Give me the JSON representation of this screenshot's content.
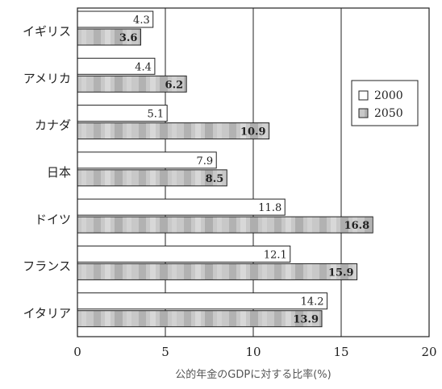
{
  "colors": {
    "series_2000_fill": "#ffffff",
    "series_2050_fill": "#c4c4c4",
    "stroke": "#222222"
  },
  "chart_data": {
    "type": "bar",
    "orientation": "horizontal",
    "categories": [
      "イギリス",
      "アメリカ",
      "カナダ",
      "日本",
      "ドイツ",
      "フランス",
      "イタリア"
    ],
    "series": [
      {
        "name": "2000",
        "values": [
          4.3,
          4.4,
          5.1,
          7.9,
          11.8,
          12.1,
          14.2
        ],
        "value_labels": [
          "4.3",
          "4.4",
          "5.1",
          "7.9",
          "11.8",
          "12.1",
          "14.2"
        ]
      },
      {
        "name": "2050",
        "values": [
          3.6,
          6.2,
          10.9,
          8.5,
          16.8,
          15.9,
          13.9
        ],
        "value_labels": [
          "3.6",
          "6.2",
          "10.9",
          "8.5",
          "16.8",
          "15.9",
          "13.9"
        ]
      }
    ],
    "xlabel": "公的年金のGDPに対する比率(%)",
    "ylabel": "",
    "xlim": [
      0,
      20
    ],
    "xticks": [
      0,
      5,
      10,
      15,
      20
    ],
    "xtick_labels": [
      "0",
      "5",
      "10",
      "15",
      "20"
    ],
    "grid": "vertical gridlines at each x tick",
    "legend_position": "right, upper middle"
  }
}
